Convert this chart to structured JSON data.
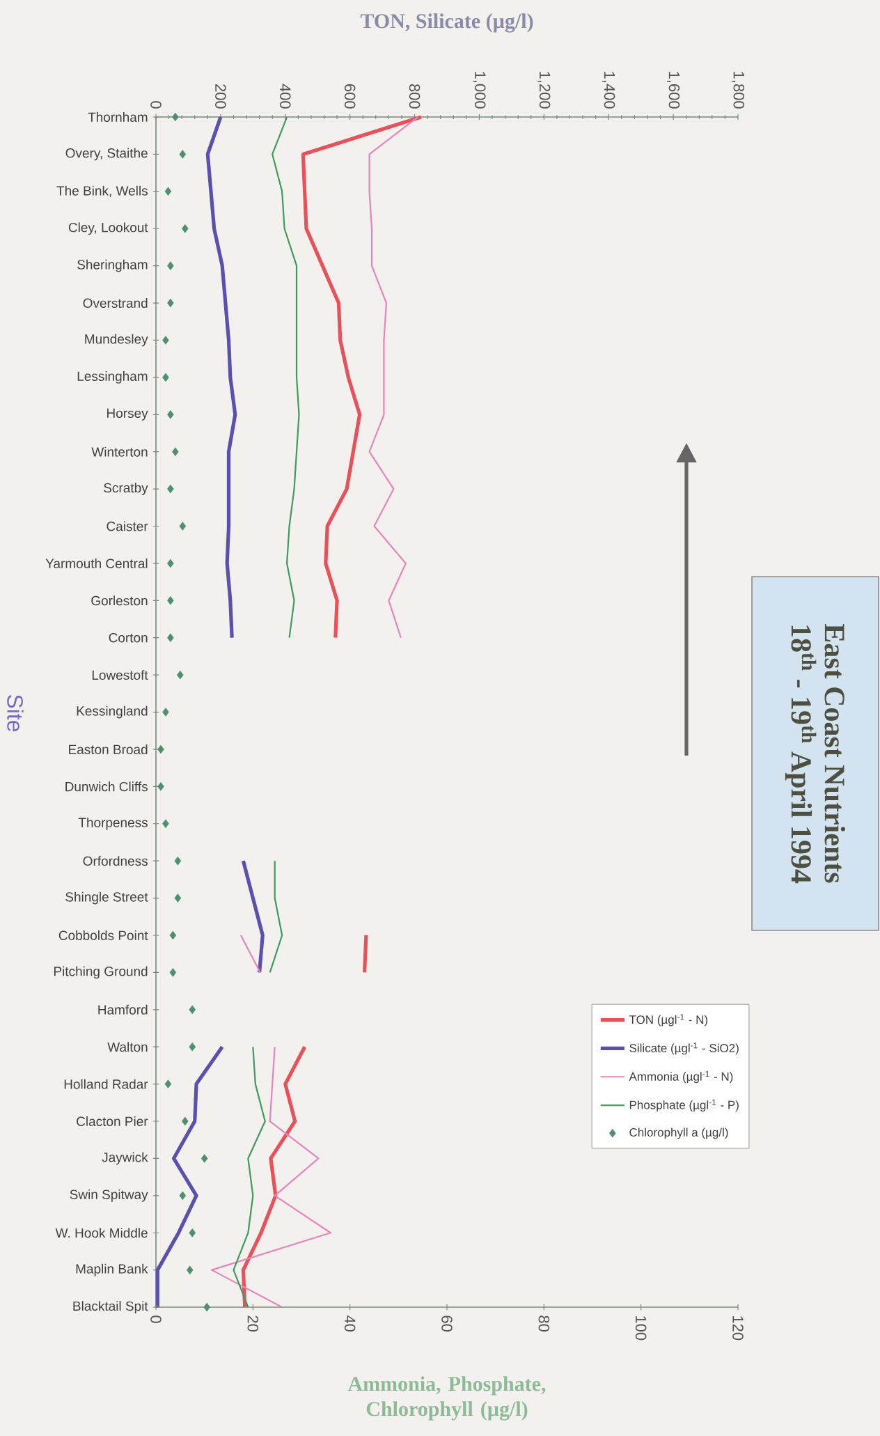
{
  "chart_data": {
    "type": "line",
    "orientation": "horizontal",
    "title": "East Coast Nutrients",
    "subtitle": "18$^{th}$ - 19$^{th}$ April 1994",
    "xlabel": "Ammonia, Phosphate, Chlorophyll (µg/l)",
    "x2label": "TON, Silicate (µg/l)",
    "ylabel": "Site",
    "categories": [
      "Thornham",
      "Overy, Staithe",
      "The Bink, Wells",
      "Cley, Lookout",
      "Sheringham",
      "Overstrand",
      "Mundesley",
      "Lessingham",
      "Horsey",
      "Winterton",
      "Scratby",
      "Caister",
      "Yarmouth Central",
      "Gorleston",
      "Corton",
      "Lowestoft",
      "Kessingland",
      "Easton Broad",
      "Dunwich Cliffs",
      "Thorpeness",
      "Orfordness",
      "Shingle Street",
      "Cobbolds Point",
      "Pitching Ground",
      "Hamford",
      "Walton",
      "Holland Radar",
      "Clacton Pier",
      "Jaywick",
      "Swin Spitway",
      "W. Hook Middle",
      "Maplin Bank",
      "Blacktail Spit"
    ],
    "xlim": [
      0,
      120
    ],
    "xticks": [
      0,
      20,
      40,
      60,
      80,
      100,
      120
    ],
    "x2lim": [
      0,
      1800
    ],
    "x2ticks": [
      0,
      200,
      400,
      600,
      800,
      {
        "value": 1000,
        "label": "1,000"
      },
      {
        "value": 1200,
        "label": "1,200"
      },
      {
        "value": 1400,
        "label": "1,400"
      },
      {
        "value": 1600,
        "label": "1,600"
      },
      {
        "value": 1800,
        "label": "1,800"
      }
    ],
    "legend": "bottom right",
    "series": [
      {
        "name": "TON (µgl$^{-1}$ - N)",
        "color": "#e9505a",
        "axis": "x2",
        "values": [
          820,
          455,
          460,
          465,
          515,
          565,
          570,
          595,
          630,
          610,
          590,
          530,
          525,
          560,
          555,
          null,
          null,
          null,
          null,
          null,
          null,
          null,
          650,
          645,
          null,
          460,
          400,
          430,
          355,
          370,
          325,
          270,
          275
        ]
      },
      {
        "name": "Silicate (µgl$^{-1}$ - SiO2)",
        "color": "#5a50b0",
        "axis": "x2",
        "values": [
          200,
          160,
          170,
          180,
          205,
          215,
          225,
          230,
          245,
          225,
          225,
          225,
          220,
          230,
          235,
          null,
          null,
          null,
          null,
          null,
          270,
          300,
          330,
          320,
          null,
          205,
          125,
          120,
          55,
          125,
          70,
          5,
          5
        ]
      },
      {
        "name": "Ammonia (µgl$^{-1}$ - N)",
        "color": "#e884bc",
        "values": [
          54,
          44,
          44,
          44.5,
          44.5,
          47.5,
          47,
          47,
          47,
          44,
          49,
          45,
          51.5,
          48,
          50.5,
          null,
          null,
          null,
          null,
          null,
          null,
          null,
          17.5,
          21.5,
          null,
          24.5,
          24,
          23.5,
          33.5,
          24.5,
          36,
          11.5,
          26
        ]
      },
      {
        "name": "Phosphate (µgl$^{-1}$ - P)",
        "color": "#3f9a62",
        "values": [
          27,
          24,
          26,
          26.5,
          29,
          29,
          29,
          29,
          29.5,
          29,
          28.5,
          27.5,
          27,
          28.5,
          27.5,
          null,
          null,
          null,
          null,
          null,
          24.5,
          24.5,
          26,
          23.5,
          null,
          20,
          20.5,
          22.5,
          19,
          20,
          19,
          16,
          19
        ]
      },
      {
        "name": "Chlorophyll a (µg/l)",
        "color": "#4f8f6f",
        "type": "scatter",
        "marker": "diamond",
        "values": [
          4,
          5.5,
          2.5,
          6,
          3,
          3,
          2,
          2,
          3,
          4,
          3,
          5.5,
          3,
          3,
          3,
          5,
          2,
          1,
          1,
          2,
          4.5,
          4.5,
          3.5,
          3.5,
          7.5,
          7.5,
          2.5,
          6,
          10,
          5.5,
          7.5,
          7,
          10.5
        ]
      }
    ]
  }
}
